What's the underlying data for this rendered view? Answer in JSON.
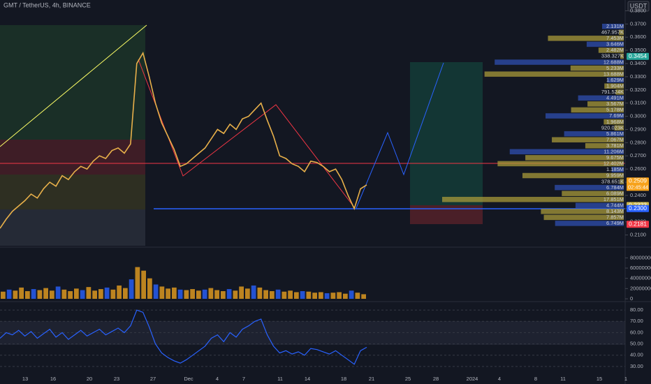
{
  "header": {
    "symbol": "GMT / TetherUS, 4h, BINANCE",
    "currency": "USDT",
    "countdown": "02:45:44"
  },
  "chart_data": [
    {
      "type": "line",
      "color": "#e8b04a",
      "x_labels": [
        "13",
        "16",
        "20",
        "23",
        "27",
        "Dec",
        "4",
        "7",
        "11",
        "14",
        "18",
        "21",
        "25",
        "28",
        "2024",
        "4",
        "8",
        "11",
        "15",
        "1"
      ],
      "ylim": [
        0.205,
        0.385
      ],
      "yticks": [
        {
          "value": 0.38,
          "label": "0.3800"
        },
        {
          "value": 0.37,
          "label": "0.3700"
        },
        {
          "value": 0.36,
          "label": "0.3600"
        },
        {
          "value": 0.35,
          "label": "0.3500"
        },
        {
          "value": 0.34,
          "label": "0.3400"
        },
        {
          "value": 0.33,
          "label": "0.3300"
        },
        {
          "value": 0.32,
          "label": "0.3200"
        },
        {
          "value": 0.31,
          "label": "0.3100"
        },
        {
          "value": 0.3,
          "label": "0.3000"
        },
        {
          "value": 0.29,
          "label": "0.2900"
        },
        {
          "value": 0.28,
          "label": "0.2800"
        },
        {
          "value": 0.27,
          "label": "0.2700"
        },
        {
          "value": 0.26,
          "label": "0.2600"
        },
        {
          "value": 0.25,
          "label": "0.2500"
        },
        {
          "value": 0.24,
          "label": "0.2400"
        },
        {
          "value": 0.23,
          "label": "0.2300"
        },
        {
          "value": 0.22,
          "label": "0.2200"
        },
        {
          "value": 0.21,
          "label": "0.2100"
        }
      ],
      "values": [
        0.215,
        0.222,
        0.228,
        0.232,
        0.236,
        0.241,
        0.238,
        0.245,
        0.25,
        0.247,
        0.255,
        0.252,
        0.258,
        0.262,
        0.26,
        0.266,
        0.27,
        0.268,
        0.274,
        0.276,
        0.272,
        0.279,
        0.34,
        0.348,
        0.33,
        0.31,
        0.295,
        0.285,
        0.275,
        0.262,
        0.264,
        0.268,
        0.272,
        0.276,
        0.283,
        0.29,
        0.287,
        0.294,
        0.29,
        0.298,
        0.3,
        0.305,
        0.31,
        0.297,
        0.285,
        0.27,
        0.268,
        0.264,
        0.262,
        0.258,
        0.266,
        0.265,
        0.262,
        0.258,
        0.26,
        0.252,
        0.24,
        0.23,
        0.245,
        0.248
      ],
      "price_tags": [
        {
          "value": 0.3454,
          "label": "0.3454",
          "color": "#26a69a"
        },
        {
          "value": 0.2509,
          "label": "0.2509",
          "color": "#f7a21b"
        },
        {
          "value": 0.2323,
          "label": "0.2323",
          "color": "#c8b44a"
        },
        {
          "value": 0.23,
          "label": "0.2300",
          "color": "#2962ff"
        },
        {
          "value": 0.2181,
          "label": "0.2181",
          "color": "#f23645"
        }
      ],
      "volume_profile": {
        "values": [
          2131000,
          467957,
          7453000,
          3646000,
          2482000,
          338327,
          12688000,
          5233000,
          13688000,
          1629000,
          1904000,
          791524,
          4491000,
          3567000,
          5178000,
          7690000,
          1968000,
          920023,
          5861000,
          7067000,
          3781000,
          11206000,
          9675000,
          12402000,
          1185000,
          9959000,
          378651,
          6784000,
          6089000,
          17851000,
          4744000,
          8143000,
          7857000,
          6749000
        ],
        "value_labels": [
          "2.131M",
          "467.957K",
          "7.453M",
          "3.646M",
          "2.482M",
          "338.327K",
          "12.688M",
          "5.233M",
          "13.688M",
          "1.629M",
          "1.904M",
          "791.524K",
          "4.491M",
          "3.567M",
          "5.178M",
          "7.69M",
          "1.968M",
          "920.023K",
          "5.861M",
          "7.067M",
          "3.781M",
          "11.206M",
          "9.675M",
          "12.402M",
          "1.185M",
          "9.959M",
          "378.651K",
          "6.784M",
          "6.089M",
          "17.851M",
          "4.744M",
          "8.143M",
          "7.857M",
          "6.749M"
        ]
      }
    },
    {
      "type": "bar",
      "color": "#e8a020",
      "ylim": [
        0,
        90000000
      ],
      "yticks": [
        0,
        20000000,
        40000000,
        60000000,
        80000000
      ],
      "values": [
        14000000,
        18000000,
        16000000,
        22000000,
        15000000,
        19000000,
        17000000,
        21000000,
        16000000,
        24000000,
        18000000,
        15000000,
        20000000,
        17000000,
        23000000,
        16000000,
        19000000,
        22000000,
        18000000,
        26000000,
        21000000,
        38000000,
        62000000,
        55000000,
        40000000,
        28000000,
        24000000,
        20000000,
        22000000,
        18000000,
        17000000,
        19000000,
        16000000,
        18000000,
        21000000,
        17000000,
        15000000,
        19000000,
        16000000,
        24000000,
        20000000,
        26000000,
        22000000,
        17000000,
        15000000,
        18000000,
        14000000,
        16000000,
        13000000,
        15000000,
        14000000,
        12000000,
        13000000,
        11000000,
        12000000,
        13000000,
        10000000,
        16000000,
        12000000,
        9000000
      ]
    },
    {
      "type": "line",
      "color": "#2962ff",
      "ylim": [
        25,
        85
      ],
      "yticks": [
        {
          "value": 30,
          "label": "30.00"
        },
        {
          "value": 40,
          "label": "40.00"
        },
        {
          "value": 50,
          "label": "50.00"
        },
        {
          "value": 60,
          "label": "60.00"
        },
        {
          "value": 70,
          "label": "70.00"
        },
        {
          "value": 80,
          "label": "80.00"
        }
      ],
      "values": [
        55,
        60,
        58,
        62,
        57,
        61,
        55,
        59,
        63,
        56,
        60,
        54,
        58,
        62,
        57,
        60,
        63,
        58,
        61,
        64,
        60,
        66,
        80,
        78,
        65,
        50,
        42,
        38,
        35,
        33,
        36,
        40,
        44,
        48,
        55,
        58,
        52,
        60,
        56,
        63,
        66,
        70,
        72,
        58,
        48,
        42,
        44,
        41,
        43,
        40,
        46,
        45,
        43,
        41,
        44,
        40,
        36,
        32,
        44,
        47
      ]
    }
  ]
}
